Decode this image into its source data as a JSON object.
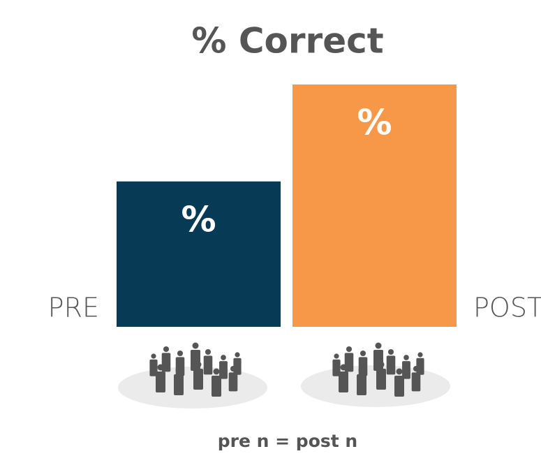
{
  "chart_data": {
    "type": "bar",
    "title": "% Correct",
    "categories": [
      "PRE",
      "POST"
    ],
    "values": [
      60,
      100
    ],
    "value_labels": [
      "%",
      "%"
    ],
    "colors": [
      "#073a55",
      "#f79848"
    ],
    "ylim": [
      0,
      100
    ],
    "annotation": "pre n = post n"
  }
}
